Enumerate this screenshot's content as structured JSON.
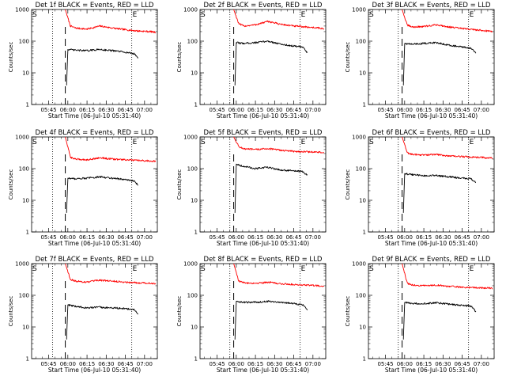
{
  "chart_data": {
    "type": "line",
    "y_scale": "log",
    "ylim": [
      1,
      1000
    ],
    "ylabel": "Counts/sec",
    "xlabel": "Start Time (06-Jul-10 05:31:40)",
    "x_range": [
      "05:31:40",
      "07:10"
    ],
    "x_ticks": [
      "05:45",
      "06:00",
      "06:15",
      "06:30",
      "06:45",
      "07:00"
    ],
    "y_ticks": [
      "1",
      "10",
      "100",
      "1000"
    ],
    "markers": {
      "start": "S",
      "end": "E"
    },
    "grid": false,
    "colors": {
      "events": "#000000",
      "lld": "#ff0000"
    },
    "panels": [
      {
        "title": "Det 1f BLACK = Events, RED = LLD",
        "lines": {
          "dotted": [
            "05:48",
            "06:50"
          ],
          "dashed": "05:58"
        },
        "series": [
          {
            "key": "lld",
            "color": "#ff0000",
            "start": "05:58",
            "end": "07:09",
            "x": [
              "05:58",
              "06:02",
              "06:06",
              "06:15",
              "06:25",
              "06:35",
              "06:45",
              "06:55",
              "07:05",
              "07:09"
            ],
            "values": [
              1000,
              300,
              260,
              240,
              300,
              260,
              230,
              210,
              200,
              190
            ]
          },
          {
            "key": "events",
            "color": "#000000",
            "start": "05:59",
            "end": "06:55",
            "x": [
              "05:59",
              "06:00",
              "06:05",
              "06:15",
              "06:25",
              "06:35",
              "06:45",
              "06:52",
              "06:55"
            ],
            "values": [
              4,
              55,
              52,
              50,
              55,
              50,
              45,
              40,
              30
            ]
          }
        ]
      },
      {
        "title": "Det 2f BLACK = Events, RED = LLD",
        "lines": {
          "dotted": [
            "05:55",
            "06:50"
          ],
          "dashed": "05:58"
        },
        "series": [
          {
            "key": "lld",
            "color": "#ff0000",
            "start": "05:58",
            "end": "07:09",
            "x": [
              "05:58",
              "06:02",
              "06:06",
              "06:15",
              "06:25",
              "06:35",
              "06:45",
              "06:55",
              "07:05",
              "07:09"
            ],
            "values": [
              1000,
              350,
              300,
              330,
              420,
              340,
              300,
              280,
              260,
              240
            ]
          },
          {
            "key": "events",
            "color": "#000000",
            "start": "05:59",
            "end": "06:56",
            "x": [
              "05:59",
              "06:00",
              "06:05",
              "06:15",
              "06:25",
              "06:35",
              "06:45",
              "06:52",
              "06:56"
            ],
            "values": [
              4,
              90,
              85,
              90,
              100,
              80,
              70,
              65,
              40
            ]
          }
        ]
      },
      {
        "title": "Det 3f BLACK = Events, RED = LLD",
        "lines": {
          "dotted": [
            "05:55",
            "06:50"
          ],
          "dashed": "05:58"
        },
        "series": [
          {
            "key": "lld",
            "color": "#ff0000",
            "start": "05:58",
            "end": "07:09",
            "x": [
              "05:58",
              "06:02",
              "06:06",
              "06:15",
              "06:25",
              "06:35",
              "06:45",
              "06:55",
              "07:05",
              "07:09"
            ],
            "values": [
              1000,
              320,
              280,
              290,
              330,
              280,
              250,
              230,
              210,
              200
            ]
          },
          {
            "key": "events",
            "color": "#000000",
            "start": "05:59",
            "end": "06:56",
            "x": [
              "05:59",
              "06:00",
              "06:05",
              "06:15",
              "06:25",
              "06:35",
              "06:45",
              "06:52",
              "06:56"
            ],
            "values": [
              4,
              85,
              80,
              85,
              90,
              75,
              65,
              60,
              40
            ]
          }
        ]
      },
      {
        "title": "Det 4f BLACK = Events, RED = LLD",
        "lines": {
          "dotted": [
            "05:48",
            "06:50"
          ],
          "dashed": "05:58"
        },
        "series": [
          {
            "key": "lld",
            "color": "#ff0000",
            "start": "05:58",
            "end": "07:09",
            "x": [
              "05:58",
              "06:02",
              "06:06",
              "06:15",
              "06:25",
              "06:35",
              "06:45",
              "06:55",
              "07:05",
              "07:09"
            ],
            "values": [
              1000,
              230,
              200,
              190,
              220,
              200,
              190,
              180,
              175,
              170
            ]
          },
          {
            "key": "events",
            "color": "#000000",
            "start": "05:59",
            "end": "06:55",
            "x": [
              "05:59",
              "06:00",
              "06:05",
              "06:15",
              "06:25",
              "06:35",
              "06:45",
              "06:52",
              "06:55"
            ],
            "values": [
              4,
              50,
              48,
              50,
              55,
              50,
              45,
              40,
              30
            ]
          }
        ]
      },
      {
        "title": "Det 5f BLACK = Events, RED = LLD",
        "lines": {
          "dotted": [
            "05:55",
            "06:50"
          ],
          "dashed": "05:58"
        },
        "series": [
          {
            "key": "lld",
            "color": "#ff0000",
            "start": "05:58",
            "end": "07:09",
            "x": [
              "05:58",
              "06:02",
              "06:06",
              "06:15",
              "06:25",
              "06:35",
              "06:45",
              "06:55",
              "07:05",
              "07:09"
            ],
            "values": [
              1000,
              500,
              420,
              400,
              430,
              380,
              350,
              340,
              330,
              320
            ]
          },
          {
            "key": "events",
            "color": "#000000",
            "start": "05:59",
            "end": "06:56",
            "x": [
              "05:59",
              "06:00",
              "06:05",
              "06:15",
              "06:25",
              "06:35",
              "06:45",
              "06:52",
              "06:56"
            ],
            "values": [
              4,
              140,
              120,
              100,
              110,
              90,
              85,
              80,
              60
            ]
          }
        ]
      },
      {
        "title": "Det 6f BLACK = Events, RED = LLD",
        "lines": {
          "dotted": [
            "05:55",
            "06:50"
          ],
          "dashed": "05:58"
        },
        "series": [
          {
            "key": "lld",
            "color": "#ff0000",
            "start": "05:58",
            "end": "07:09",
            "x": [
              "05:58",
              "06:02",
              "06:06",
              "06:15",
              "06:25",
              "06:35",
              "06:45",
              "06:55",
              "07:05",
              "07:09"
            ],
            "values": [
              1000,
              320,
              280,
              270,
              280,
              250,
              240,
              230,
              220,
              210
            ]
          },
          {
            "key": "events",
            "color": "#000000",
            "start": "05:59",
            "end": "06:56",
            "x": [
              "05:59",
              "06:00",
              "06:05",
              "06:15",
              "06:25",
              "06:35",
              "06:45",
              "06:52",
              "06:56"
            ],
            "values": [
              4,
              70,
              65,
              60,
              60,
              55,
              50,
              48,
              35
            ]
          }
        ]
      },
      {
        "title": "Det 7f BLACK = Events, RED = LLD",
        "lines": {
          "dotted": [
            "05:48",
            "06:50"
          ],
          "dashed": "05:58"
        },
        "series": [
          {
            "key": "lld",
            "color": "#ff0000",
            "start": "05:58",
            "end": "07:09",
            "x": [
              "05:58",
              "06:02",
              "06:06",
              "06:15",
              "06:25",
              "06:35",
              "06:45",
              "06:55",
              "07:05",
              "07:09"
            ],
            "values": [
              1000,
              320,
              280,
              260,
              300,
              280,
              260,
              250,
              240,
              230
            ]
          },
          {
            "key": "events",
            "color": "#000000",
            "start": "05:59",
            "end": "06:55",
            "x": [
              "05:59",
              "06:00",
              "06:05",
              "06:15",
              "06:25",
              "06:35",
              "06:45",
              "06:52",
              "06:55"
            ],
            "values": [
              4,
              50,
              45,
              40,
              42,
              40,
              38,
              35,
              25
            ]
          }
        ]
      },
      {
        "title": "Det 8f BLACK = Events, RED = LLD",
        "lines": {
          "dotted": [
            "05:55",
            "06:50"
          ],
          "dashed": "05:58"
        },
        "series": [
          {
            "key": "lld",
            "color": "#ff0000",
            "start": "05:58",
            "end": "07:09",
            "x": [
              "05:58",
              "06:02",
              "06:06",
              "06:15",
              "06:25",
              "06:35",
              "06:45",
              "06:55",
              "07:05",
              "07:09"
            ],
            "values": [
              1000,
              280,
              250,
              240,
              260,
              230,
              220,
              210,
              200,
              195
            ]
          },
          {
            "key": "events",
            "color": "#000000",
            "start": "05:59",
            "end": "06:56",
            "x": [
              "05:59",
              "06:00",
              "06:05",
              "06:15",
              "06:25",
              "06:35",
              "06:45",
              "06:52",
              "06:56"
            ],
            "values": [
              4,
              65,
              60,
              60,
              65,
              60,
              55,
              50,
              35
            ]
          }
        ]
      },
      {
        "title": "Det 9f BLACK = Events, RED = LLD",
        "lines": {
          "dotted": [
            "05:55",
            "06:50"
          ],
          "dashed": "05:58"
        },
        "series": [
          {
            "key": "lld",
            "color": "#ff0000",
            "start": "05:58",
            "end": "07:09",
            "x": [
              "05:58",
              "06:02",
              "06:06",
              "06:15",
              "06:25",
              "06:35",
              "06:45",
              "06:55",
              "07:05",
              "07:09"
            ],
            "values": [
              1000,
              240,
              210,
              200,
              210,
              190,
              180,
              175,
              170,
              165
            ]
          },
          {
            "key": "events",
            "color": "#000000",
            "start": "05:59",
            "end": "06:56",
            "x": [
              "05:59",
              "06:00",
              "06:05",
              "06:15",
              "06:25",
              "06:35",
              "06:45",
              "06:52",
              "06:56"
            ],
            "values": [
              4,
              60,
              55,
              55,
              58,
              52,
              48,
              45,
              30
            ]
          }
        ]
      }
    ]
  }
}
